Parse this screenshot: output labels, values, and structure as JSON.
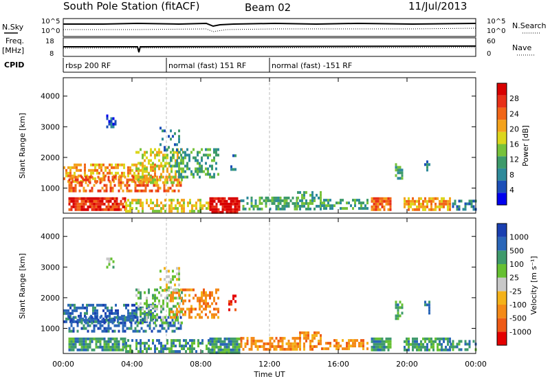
{
  "header": {
    "station": "South Pole Station (fitACF)",
    "beam": "Beam 02",
    "date": "11/Jul/2013"
  },
  "summary_labels": {
    "nsky": "N.Sky",
    "nsearch": "N.Search",
    "freq_top": "Freq.",
    "freq_unit": "[MHz]",
    "nave": "Nave",
    "cpid": "CPID",
    "nsky_ticks": [
      "10^5",
      "10^0"
    ],
    "nsearch_ticks": [
      "10^5",
      "10^0"
    ],
    "freq_ticks": [
      "18",
      "8"
    ],
    "nave_ticks": [
      "60",
      "0"
    ]
  },
  "cpid_segments": [
    {
      "start": 0,
      "end": 6,
      "label": "rbsp 200 RF"
    },
    {
      "start": 6,
      "end": 12,
      "label": "normal (fast) 151 RF"
    },
    {
      "start": 12,
      "end": 24,
      "label": "normal (fast) -151 RF"
    }
  ],
  "chart_data": [
    {
      "type": "heatmap",
      "quantity": "power",
      "ylabel": "Slant Range [km]",
      "ylim": [
        180,
        4600
      ],
      "yticks": [
        "1000",
        "2000",
        "3000",
        "4000"
      ],
      "colorbar_label": "Power [dB]",
      "colorbar_ticks": [
        "4",
        "8",
        "12",
        "16",
        "20",
        "24",
        "28"
      ],
      "colors": [
        "#0000ee",
        "#1c4fb8",
        "#2e8a9a",
        "#3d9a6a",
        "#77c23a",
        "#dcd61c",
        "#f4a21c",
        "#f16618",
        "#e83018",
        "#d80000"
      ]
    },
    {
      "type": "heatmap",
      "quantity": "velocity",
      "ylabel": "Slant Range [km]",
      "ylim": [
        180,
        4600
      ],
      "yticks": [
        "1000",
        "2000",
        "3000",
        "4000"
      ],
      "colorbar_label": "Velocity [m s⁻¹]",
      "colorbar_ticks": [
        "1000",
        "500",
        "100",
        "25",
        "-25",
        "-100",
        "-500",
        "-1000"
      ],
      "colors": [
        "#1a3fb0",
        "#2a66b8",
        "#3f9a6c",
        "#66c032",
        "#c8c8c8",
        "#f4b21a",
        "#f48a18",
        "#ee5a16",
        "#e40000"
      ]
    }
  ],
  "xaxis": {
    "label": "Time UT",
    "ticks": [
      "00:00",
      "04:00",
      "08:00",
      "12:00",
      "16:00",
      "20:00",
      "00:00"
    ],
    "tick_hours": [
      0,
      4,
      8,
      12,
      16,
      20,
      24
    ]
  },
  "blobs": [
    {
      "t0": 0.0,
      "t1": 5.3,
      "r0": 1200,
      "r1": 1800,
      "pw": 6,
      "vel": 1,
      "d": 0.55
    },
    {
      "t0": 0.3,
      "t1": 6.9,
      "r0": 950,
      "r1": 1400,
      "pw": 7,
      "vel": 1,
      "d": 0.5
    },
    {
      "t0": 4.2,
      "t1": 6.9,
      "r0": 1200,
      "r1": 2300,
      "pw": 5,
      "vel": 3,
      "d": 0.45
    },
    {
      "t0": 6.2,
      "t1": 9.0,
      "r0": 1350,
      "r1": 2300,
      "pw": 3,
      "vel": 6,
      "d": 0.4
    },
    {
      "t0": 5.6,
      "t1": 6.8,
      "r0": 2200,
      "r1": 3000,
      "pw": 2,
      "vel": 4,
      "d": 0.3
    },
    {
      "t0": 2.5,
      "t1": 3.1,
      "r0": 3000,
      "r1": 3400,
      "pw": 1,
      "vel": 3,
      "d": 0.45
    },
    {
      "t0": 0.3,
      "t1": 3.6,
      "r0": 300,
      "r1": 700,
      "pw": 8,
      "vel": 2,
      "d": 0.85
    },
    {
      "t0": 3.6,
      "t1": 8.5,
      "r0": 280,
      "r1": 650,
      "pw": 5,
      "vel": 2,
      "d": 0.55
    },
    {
      "t0": 8.5,
      "t1": 10.3,
      "r0": 250,
      "r1": 700,
      "pw": 9,
      "vel": 2,
      "d": 0.9
    },
    {
      "t0": 10.3,
      "t1": 13.6,
      "r0": 300,
      "r1": 720,
      "pw": 3,
      "vel": 6,
      "d": 0.6
    },
    {
      "t0": 13.6,
      "t1": 15.0,
      "r0": 300,
      "r1": 900,
      "pw": 3,
      "vel": 6,
      "d": 0.55
    },
    {
      "t0": 15.0,
      "t1": 17.7,
      "r0": 300,
      "r1": 650,
      "pw": 3,
      "vel": 6,
      "d": 0.5
    },
    {
      "t0": 17.9,
      "t1": 19.0,
      "r0": 300,
      "r1": 700,
      "pw": 7,
      "vel": 2,
      "d": 0.85
    },
    {
      "t0": 19.8,
      "t1": 22.5,
      "r0": 300,
      "r1": 700,
      "pw": 6,
      "vel": 2,
      "d": 0.75
    },
    {
      "t0": 22.5,
      "t1": 24.0,
      "r0": 350,
      "r1": 620,
      "pw": 2,
      "vel": 2,
      "d": 0.45
    },
    {
      "t0": 19.3,
      "t1": 19.7,
      "r0": 1300,
      "r1": 1900,
      "pw": 3,
      "vel": 2,
      "d": 0.55
    },
    {
      "t0": 21.0,
      "t1": 21.3,
      "r0": 1500,
      "r1": 1900,
      "pw": 2,
      "vel": 1,
      "d": 0.5
    },
    {
      "t0": 9.6,
      "t1": 10.0,
      "r0": 1600,
      "r1": 2100,
      "pw": 2,
      "vel": 8,
      "d": 0.4
    }
  ]
}
